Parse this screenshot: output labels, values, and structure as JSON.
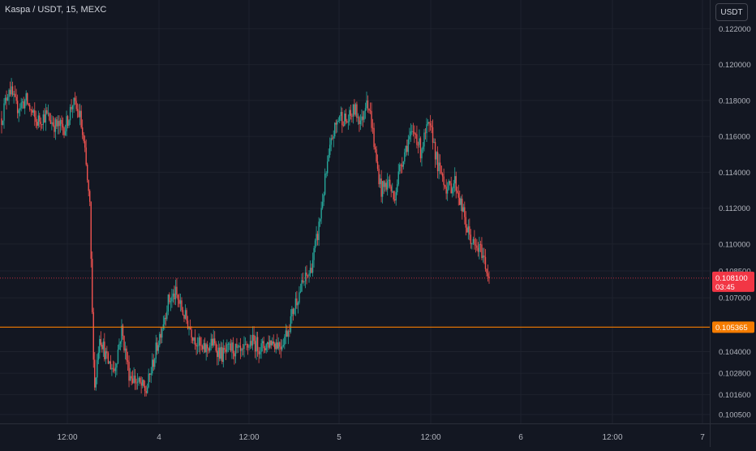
{
  "header": {
    "title": "Kaspa / USDT, 15, MEXC",
    "currency": "USDT"
  },
  "price_tag": {
    "value": "0.108100",
    "countdown": "03:45",
    "color": "#f23645"
  },
  "level_tag": {
    "value": "0.105365",
    "color": "#f57c00"
  },
  "colors": {
    "background": "#131722",
    "up": "#26a69a",
    "down": "#ef5350",
    "grid": "#1e222d",
    "axis_text": "#b2b5be"
  },
  "chart_data": {
    "type": "candlestick",
    "symbol": "Kaspa / USDT",
    "interval": "15",
    "exchange": "MEXC",
    "ylim": [
      0.1,
      0.1236
    ],
    "y_ticks": [
      "0.122000",
      "0.120000",
      "0.118000",
      "0.116000",
      "0.114000",
      "0.112000",
      "0.110000",
      "0.108500",
      "0.107000",
      "0.104000",
      "0.102800",
      "0.101600",
      "0.100500"
    ],
    "x_ticks": [
      "12:00",
      "4",
      "12:00",
      "5",
      "12:00",
      "6",
      "12:00",
      "7"
    ],
    "last_price": 0.1081,
    "horizontal_line": 0.105365,
    "price_path": [
      {
        "t": 0,
        "p": 0.117
      },
      {
        "t": 6,
        "p": 0.1188
      },
      {
        "t": 12,
        "p": 0.1176
      },
      {
        "t": 20,
        "p": 0.118
      },
      {
        "t": 28,
        "p": 0.1168
      },
      {
        "t": 36,
        "p": 0.1172
      },
      {
        "t": 44,
        "p": 0.1166
      },
      {
        "t": 52,
        "p": 0.1165
      },
      {
        "t": 58,
        "p": 0.1179
      },
      {
        "t": 64,
        "p": 0.1171
      },
      {
        "t": 68,
        "p": 0.115
      },
      {
        "t": 72,
        "p": 0.112
      },
      {
        "t": 74,
        "p": 0.106
      },
      {
        "t": 76,
        "p": 0.102
      },
      {
        "t": 80,
        "p": 0.105
      },
      {
        "t": 86,
        "p": 0.1035
      },
      {
        "t": 92,
        "p": 0.103
      },
      {
        "t": 98,
        "p": 0.1052
      },
      {
        "t": 104,
        "p": 0.1028
      },
      {
        "t": 112,
        "p": 0.1022
      },
      {
        "t": 118,
        "p": 0.1018
      },
      {
        "t": 124,
        "p": 0.1035
      },
      {
        "t": 130,
        "p": 0.1052
      },
      {
        "t": 136,
        "p": 0.1068
      },
      {
        "t": 142,
        "p": 0.1072
      },
      {
        "t": 148,
        "p": 0.1062
      },
      {
        "t": 156,
        "p": 0.105
      },
      {
        "t": 164,
        "p": 0.104
      },
      {
        "t": 172,
        "p": 0.1045
      },
      {
        "t": 180,
        "p": 0.1038
      },
      {
        "t": 188,
        "p": 0.1042
      },
      {
        "t": 196,
        "p": 0.1038
      },
      {
        "t": 204,
        "p": 0.1046
      },
      {
        "t": 212,
        "p": 0.1042
      },
      {
        "t": 220,
        "p": 0.1046
      },
      {
        "t": 228,
        "p": 0.1044
      },
      {
        "t": 234,
        "p": 0.1053
      },
      {
        "t": 240,
        "p": 0.1068
      },
      {
        "t": 246,
        "p": 0.1078
      },
      {
        "t": 252,
        "p": 0.1085
      },
      {
        "t": 258,
        "p": 0.1105
      },
      {
        "t": 264,
        "p": 0.1135
      },
      {
        "t": 270,
        "p": 0.116
      },
      {
        "t": 276,
        "p": 0.1172
      },
      {
        "t": 282,
        "p": 0.1168
      },
      {
        "t": 288,
        "p": 0.1175
      },
      {
        "t": 294,
        "p": 0.1168
      },
      {
        "t": 298,
        "p": 0.1183
      },
      {
        "t": 302,
        "p": 0.1168
      },
      {
        "t": 306,
        "p": 0.1145
      },
      {
        "t": 310,
        "p": 0.113
      },
      {
        "t": 316,
        "p": 0.1135
      },
      {
        "t": 320,
        "p": 0.1125
      },
      {
        "t": 326,
        "p": 0.1145
      },
      {
        "t": 332,
        "p": 0.1158
      },
      {
        "t": 338,
        "p": 0.1162
      },
      {
        "t": 342,
        "p": 0.1152
      },
      {
        "t": 348,
        "p": 0.1165
      },
      {
        "t": 352,
        "p": 0.116
      },
      {
        "t": 356,
        "p": 0.1143
      },
      {
        "t": 360,
        "p": 0.1138
      },
      {
        "t": 364,
        "p": 0.113
      },
      {
        "t": 370,
        "p": 0.1135
      },
      {
        "t": 374,
        "p": 0.1125
      },
      {
        "t": 380,
        "p": 0.1108
      },
      {
        "t": 386,
        "p": 0.1098
      },
      {
        "t": 392,
        "p": 0.1096
      },
      {
        "t": 398,
        "p": 0.1081
      }
    ]
  }
}
